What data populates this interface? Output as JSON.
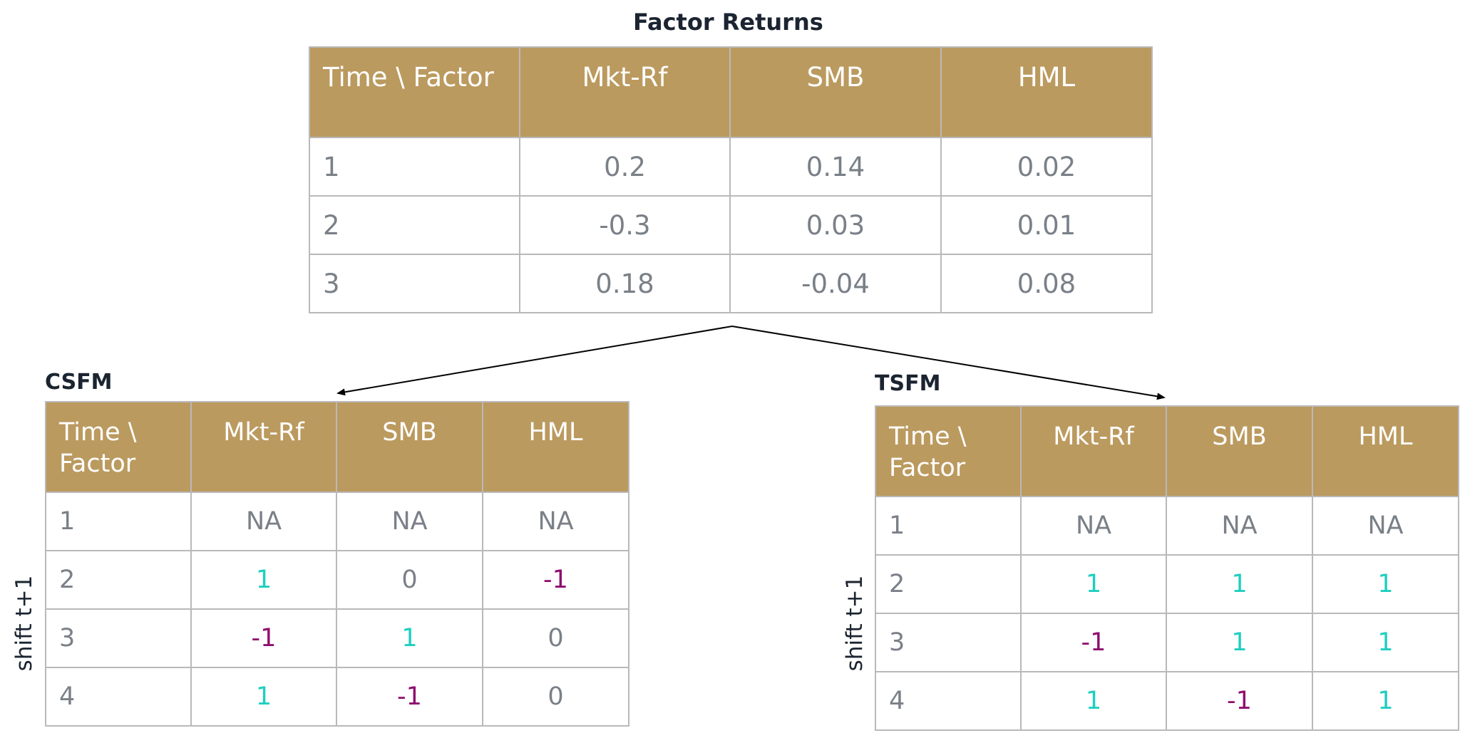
{
  "factor_returns": {
    "title": "Factor Returns",
    "headers": [
      "Time \\ Factor",
      "Mkt-Rf",
      "SMB",
      "HML"
    ],
    "rows": [
      [
        "1",
        "0.2",
        "0.14",
        "0.02"
      ],
      [
        "2",
        "-0.3",
        "0.03",
        "0.01"
      ],
      [
        "3",
        "0.18",
        "-0.04",
        "0.08"
      ]
    ]
  },
  "csfm": {
    "title": "CSFM",
    "side_label": "shift t+1",
    "headers": [
      "Time \\ Factor",
      "Mkt-Rf",
      "SMB",
      "HML"
    ],
    "rows": [
      [
        "1",
        "NA",
        "NA",
        "NA"
      ],
      [
        "2",
        "1",
        "0",
        "-1"
      ],
      [
        "3",
        "-1",
        "1",
        "0"
      ],
      [
        "4",
        "1",
        "-1",
        "0"
      ]
    ]
  },
  "tsfm": {
    "title": "TSFM",
    "side_label": "shift t+1",
    "headers": [
      "Time \\ Factor",
      "Mkt-Rf",
      "SMB",
      "HML"
    ],
    "rows": [
      [
        "1",
        "NA",
        "NA",
        "NA"
      ],
      [
        "2",
        "1",
        "1",
        "1"
      ],
      [
        "3",
        "-1",
        "1",
        "1"
      ],
      [
        "4",
        "1",
        "-1",
        "1"
      ]
    ]
  },
  "colors": {
    "header_bg": "#bb9a5f",
    "positive": "#1ecfc0",
    "negative": "#8e0f6e",
    "neutral": "#7a8088"
  }
}
